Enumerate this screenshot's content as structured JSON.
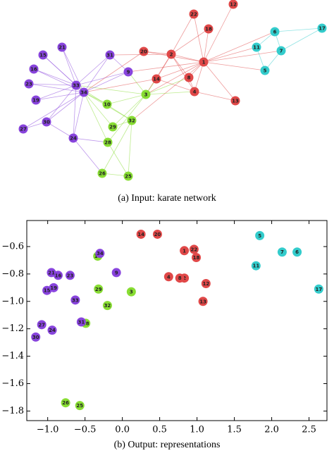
{
  "figure_a": {
    "caption": "(a) Input: karate network",
    "nodes": [
      {
        "label": "1",
        "color": "#e04848"
      },
      {
        "label": "2",
        "color": "#e04848"
      },
      {
        "label": "3",
        "color": "#88dd33"
      },
      {
        "label": "4",
        "color": "#e04848"
      },
      {
        "label": "5",
        "color": "#33cccc"
      },
      {
        "label": "6",
        "color": "#33cccc"
      },
      {
        "label": "7",
        "color": "#33cccc"
      },
      {
        "label": "8",
        "color": "#e04848"
      },
      {
        "label": "9",
        "color": "#8844dd"
      },
      {
        "label": "10",
        "color": "#88dd33"
      },
      {
        "label": "11",
        "color": "#33cccc"
      },
      {
        "label": "12",
        "color": "#e04848"
      },
      {
        "label": "13",
        "color": "#e04848"
      },
      {
        "label": "14",
        "color": "#e04848"
      },
      {
        "label": "15",
        "color": "#8844dd"
      },
      {
        "label": "16",
        "color": "#8844dd"
      },
      {
        "label": "17",
        "color": "#33cccc"
      },
      {
        "label": "18",
        "color": "#e04848"
      },
      {
        "label": "19",
        "color": "#8844dd"
      },
      {
        "label": "20",
        "color": "#e04848"
      },
      {
        "label": "21",
        "color": "#8844dd"
      },
      {
        "label": "22",
        "color": "#e04848"
      },
      {
        "label": "23",
        "color": "#8844dd"
      },
      {
        "label": "24",
        "color": "#8844dd"
      },
      {
        "label": "25",
        "color": "#88dd33"
      },
      {
        "label": "26",
        "color": "#88dd33"
      },
      {
        "label": "27",
        "color": "#8844dd"
      },
      {
        "label": "28",
        "color": "#88dd33"
      },
      {
        "label": "29",
        "color": "#88dd33"
      },
      {
        "label": "30",
        "color": "#8844dd"
      },
      {
        "label": "31",
        "color": "#8844dd"
      },
      {
        "label": "32",
        "color": "#88dd33"
      },
      {
        "label": "33",
        "color": "#8844dd"
      },
      {
        "label": "34",
        "color": "#8844dd"
      }
    ]
  },
  "chart_data": {
    "type": "scatter",
    "caption": "(b) Output: representations",
    "xlim": [
      -1.28,
      2.74
    ],
    "ylim": [
      -1.87,
      -0.41
    ],
    "xticks": [
      {
        "value": -1.0,
        "label": "−1.0"
      },
      {
        "value": -0.5,
        "label": "−0.5"
      },
      {
        "value": 0,
        "label": "0.0"
      },
      {
        "value": 0.5,
        "label": "0.5"
      },
      {
        "value": 1.0,
        "label": "1.0"
      },
      {
        "value": 1.5,
        "label": "1.5"
      },
      {
        "value": 2.0,
        "label": "2.0"
      },
      {
        "value": 2.5,
        "label": "2.5"
      }
    ],
    "yticks": [
      {
        "value": -0.6,
        "label": "−0.6"
      },
      {
        "value": -0.8,
        "label": "−0.8"
      },
      {
        "value": -1.0,
        "label": "−1.0"
      },
      {
        "value": -1.2,
        "label": "−1.2"
      },
      {
        "value": -1.4,
        "label": "−1.4"
      },
      {
        "value": -1.6,
        "label": "−1.6"
      },
      {
        "value": -1.8,
        "label": "−1.8"
      }
    ],
    "series": [
      {
        "color": "#e04848",
        "labels": [
          "1",
          "2",
          "4",
          "8",
          "12",
          "13",
          "14",
          "18",
          "20",
          "22"
        ],
        "x": [
          0.83,
          0.83,
          0.62,
          0.77,
          1.12,
          1.08,
          0.25,
          0.99,
          0.47,
          0.96
        ],
        "values": [
          -0.63,
          -0.83,
          -0.82,
          -0.83,
          -0.87,
          -1.0,
          -0.51,
          -0.68,
          -0.51,
          -0.62
        ]
      },
      {
        "color": "#33cccc",
        "labels": [
          "5",
          "6",
          "7",
          "11",
          "17"
        ],
        "x": [
          1.84,
          2.34,
          2.14,
          1.79,
          2.63
        ],
        "values": [
          -0.52,
          -0.64,
          -0.64,
          -0.74,
          -0.91
        ]
      },
      {
        "color": "#88dd33",
        "labels": [
          "3",
          "10",
          "25",
          "26",
          "28",
          "29",
          "32"
        ],
        "x": [
          0.12,
          -0.33,
          -0.57,
          -0.76,
          -0.49,
          -0.32,
          -0.2
        ],
        "values": [
          -0.93,
          -0.67,
          -1.76,
          -1.74,
          -1.16,
          -0.91,
          -1.03
        ]
      },
      {
        "color": "#8844dd",
        "labels": [
          "9",
          "15",
          "16",
          "19",
          "21",
          "23",
          "24",
          "27",
          "30",
          "31",
          "33",
          "34"
        ],
        "x": [
          -0.08,
          -1.01,
          -0.86,
          -0.92,
          -0.95,
          -0.7,
          -0.94,
          -1.08,
          -1.16,
          -0.55,
          -0.63,
          -0.3
        ],
        "values": [
          -0.79,
          -0.92,
          -0.81,
          -0.9,
          -0.79,
          -0.81,
          -1.21,
          -1.17,
          -1.26,
          -1.15,
          -0.99,
          -0.65
        ]
      }
    ]
  }
}
